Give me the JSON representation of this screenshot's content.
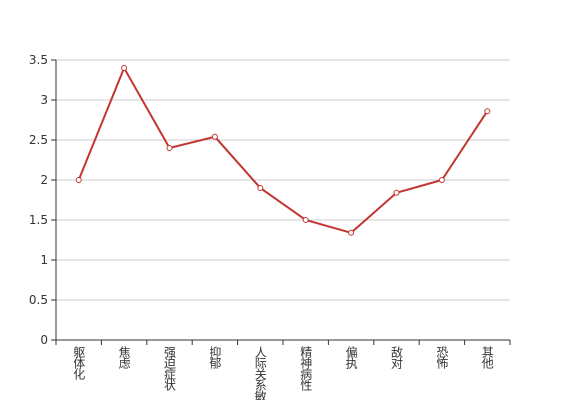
{
  "chart_data": {
    "type": "line",
    "categories": [
      "躯体化",
      "焦虑",
      "强迫症状",
      "抑郁",
      "人际关系敏感",
      "精神病性",
      "偏执",
      "敌对",
      "恐怖",
      "其他"
    ],
    "values": [
      2.0,
      3.4,
      2.4,
      2.54,
      1.9,
      1.5,
      1.34,
      1.84,
      2.0,
      2.86
    ],
    "color": "#c23531",
    "ylim": [
      0,
      3.5
    ],
    "yticks": [
      0,
      0.5,
      1,
      1.5,
      2,
      2.5,
      3,
      3.5
    ],
    "grid": true
  }
}
